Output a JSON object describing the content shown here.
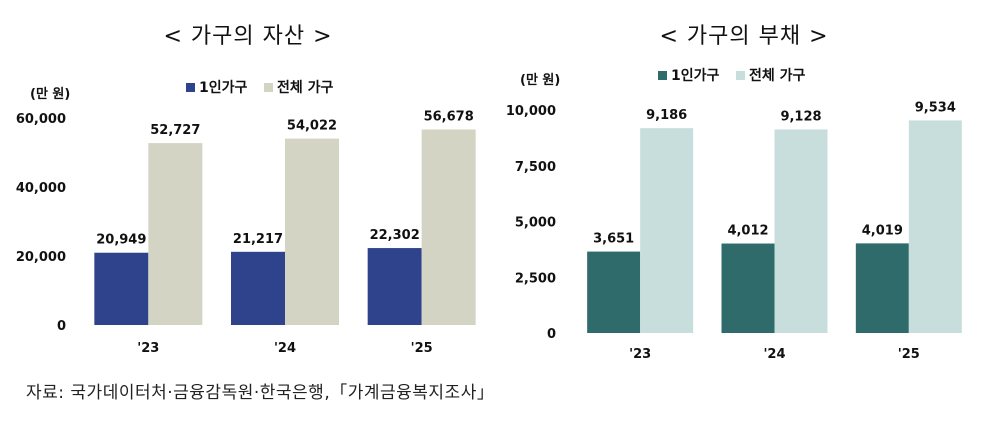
{
  "chart_data": [
    {
      "type": "bar",
      "title": "< 가구의 자산 >",
      "ylabel": "(만 원)",
      "categories": [
        "'23",
        "'24",
        "'25"
      ],
      "series": [
        {
          "name": "1인가구",
          "values": [
            20949,
            21217,
            22302
          ],
          "color": "#2f438c"
        },
        {
          "name": "전체 가구",
          "values": [
            52727,
            54022,
            56678
          ],
          "color": "#d3d4c3"
        }
      ],
      "data_labels": [
        [
          "20,949",
          "21,217",
          "22,302"
        ],
        [
          "52,727",
          "54,022",
          "56,678"
        ]
      ],
      "yticks": [
        "0",
        "20,000",
        "40,000",
        "60,000"
      ],
      "ytick_values": [
        0,
        20000,
        40000,
        60000
      ],
      "ylim": [
        0,
        60000
      ],
      "legend_position": "top"
    },
    {
      "type": "bar",
      "title": "< 가구의 부채 >",
      "ylabel": "(만 원)",
      "categories": [
        "'23",
        "'24",
        "'25"
      ],
      "series": [
        {
          "name": "1인가구",
          "values": [
            3651,
            4012,
            4019
          ],
          "color": "#2e6b6a"
        },
        {
          "name": "전체 가구",
          "values": [
            9186,
            9128,
            9534
          ],
          "color": "#c8dedd"
        }
      ],
      "data_labels": [
        [
          "3,651",
          "4,012",
          "4,019"
        ],
        [
          "9,186",
          "9,128",
          "9,534"
        ]
      ],
      "yticks": [
        "0",
        "2,500",
        "5,000",
        "7,500",
        "10,000"
      ],
      "ytick_values": [
        0,
        2500,
        5000,
        7500,
        10000
      ],
      "ylim": [
        0,
        10000
      ],
      "legend_position": "top"
    }
  ],
  "source": "자료:  국가데이터처·금융감독원·한국은행,「가계금융복지조사」"
}
